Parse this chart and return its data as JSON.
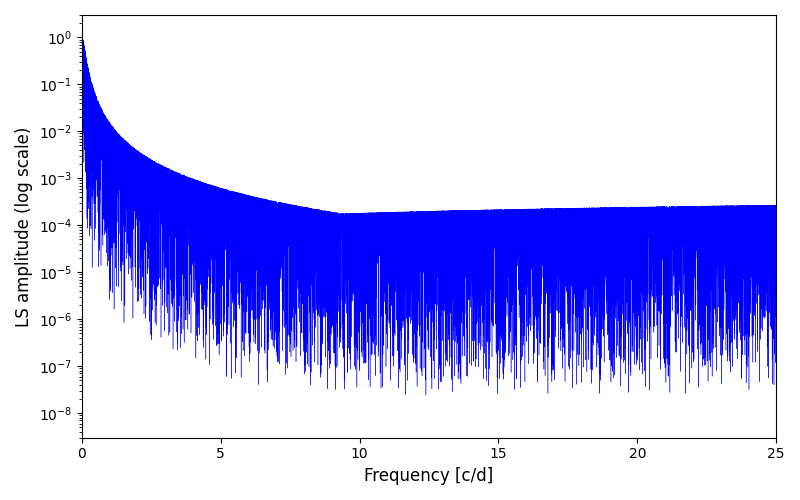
{
  "xlabel": "Frequency [c/d]",
  "ylabel": "LS amplitude (log scale)",
  "xlim": [
    0,
    25
  ],
  "ylim": [
    3e-09,
    3.0
  ],
  "line_color": "#0000ff",
  "background_color": "#ffffff",
  "yscale": "log",
  "figsize": [
    8.0,
    5.0
  ],
  "dpi": 100,
  "xlabel_fontsize": 12,
  "ylabel_fontsize": 12,
  "seed": 42,
  "n_points": 15000,
  "freq_max": 25.0,
  "peak_amplitude": 1.0
}
